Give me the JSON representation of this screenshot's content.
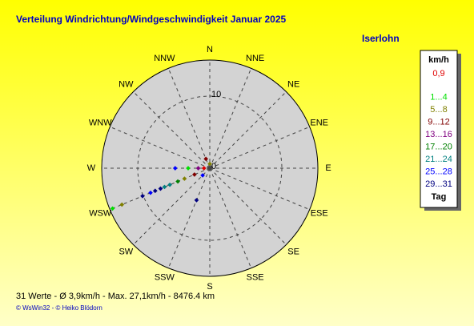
{
  "chart_data": {
    "type": "polar-scatter",
    "title": "Verteilung Windrichtung/Windgeschwindigkeit  Januar 2025",
    "subtitle": "Iserlohn",
    "categories": [
      "N",
      "NNE",
      "NE",
      "ENE",
      "E",
      "ESE",
      "SE",
      "SSE",
      "S",
      "SSW",
      "SW",
      "WSW",
      "W",
      "WNW",
      "NW",
      "NNW"
    ],
    "rlim": [
      0,
      15
    ],
    "rticks": [
      0,
      10
    ],
    "legend_title": "km/h",
    "legend_footer": "Tag",
    "series": [
      {
        "name": "0,9",
        "color": "#e00000",
        "directions": [
          270
        ],
        "values": [
          0.8
        ]
      },
      {
        "name": "1...4",
        "color": "#00e000",
        "directions": [
          247.5,
          270
        ],
        "values": [
          14.6,
          3.0
        ]
      },
      {
        "name": "5...8",
        "color": "#808000",
        "directions": [
          247.5,
          247.5,
          0
        ],
        "values": [
          13.2,
          3.8,
          0.6
        ]
      },
      {
        "name": "9...12",
        "color": "#800000",
        "directions": [
          247.5,
          337.5
        ],
        "values": [
          2.3,
          1.4
        ]
      },
      {
        "name": "13...16",
        "color": "#800080",
        "directions": [
          270
        ],
        "values": [
          1.6
        ]
      },
      {
        "name": "17...20",
        "color": "#008000",
        "directions": [
          247.5
        ],
        "values": [
          4.8
        ]
      },
      {
        "name": "21...24",
        "color": "#008080",
        "directions": [
          247.5,
          247.5
        ],
        "values": [
          6.0,
          6.8
        ]
      },
      {
        "name": "25...28",
        "color": "#0000ff",
        "directions": [
          247.5,
          270,
          225
        ],
        "values": [
          8.9,
          4.8,
          1.4
        ]
      },
      {
        "name": "29...31",
        "color": "#000080",
        "directions": [
          247.5,
          247.5,
          202.5,
          247.5
        ],
        "values": [
          10.1,
          7.4,
          4.8,
          8.2
        ]
      }
    ],
    "footer": "31 Werte   -   Ø 3,9km/h  -  Max. 27,1km/h   -   8476.4 km",
    "credit": "© WsWin32  -  © Heiko Blödorn"
  }
}
